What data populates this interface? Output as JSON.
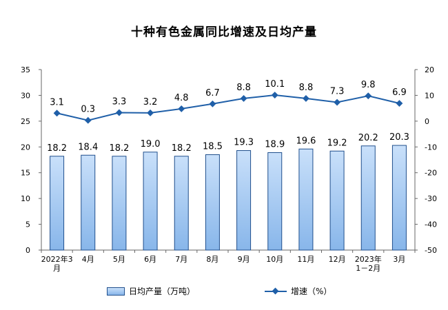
{
  "chart_data": {
    "type": "bar",
    "title": "十种有色金属同比增速及日均产量",
    "categories": [
      [
        "2022年3",
        "月"
      ],
      [
        "4月"
      ],
      [
        "5月"
      ],
      [
        "6月"
      ],
      [
        "7月"
      ],
      [
        "8月"
      ],
      [
        "9月"
      ],
      [
        "10月"
      ],
      [
        "11月"
      ],
      [
        "12月"
      ],
      [
        "2023年",
        "1－2月"
      ],
      [
        "3月"
      ]
    ],
    "series": [
      {
        "name": "日均产量（万吨）",
        "type": "bar",
        "axis": "left",
        "values": [
          18.2,
          18.4,
          18.2,
          19.0,
          18.2,
          18.5,
          19.3,
          18.9,
          19.6,
          19.2,
          20.2,
          20.3
        ],
        "labels": [
          "18.2",
          "18.4",
          "18.2",
          "19.0",
          "18.2",
          "18.5",
          "19.3",
          "18.9",
          "19.6",
          "19.2",
          "20.2",
          "20.3"
        ],
        "color": "#9dc3f0"
      },
      {
        "name": "增速（%）",
        "type": "line",
        "axis": "right",
        "values": [
          3.1,
          0.3,
          3.3,
          3.2,
          4.8,
          6.7,
          8.8,
          10.1,
          8.8,
          7.3,
          9.8,
          6.9
        ],
        "labels": [
          "3.1",
          "0.3",
          "3.3",
          "3.2",
          "4.8",
          "6.7",
          "8.8",
          "10.1",
          "8.8",
          "7.3",
          "9.8",
          "6.9"
        ],
        "color": "#1f5fa8"
      }
    ],
    "y_left": {
      "lim": [
        0,
        35
      ],
      "ticks": [
        "0",
        "5",
        "10",
        "15",
        "20",
        "25",
        "30",
        "35"
      ]
    },
    "y_right": {
      "lim": [
        -50,
        20
      ],
      "ticks": [
        "-50",
        "-40",
        "-30",
        "-20",
        "-10",
        "0",
        "10",
        "20"
      ]
    },
    "grid": false,
    "legend_position": "bottom"
  },
  "colors": {
    "bar_fill_top": "#c9e0fa",
    "bar_fill_bottom": "#88b6ea",
    "bar_stroke": "#1f4e8c",
    "line": "#1f5fa8",
    "axis": "#666666"
  }
}
